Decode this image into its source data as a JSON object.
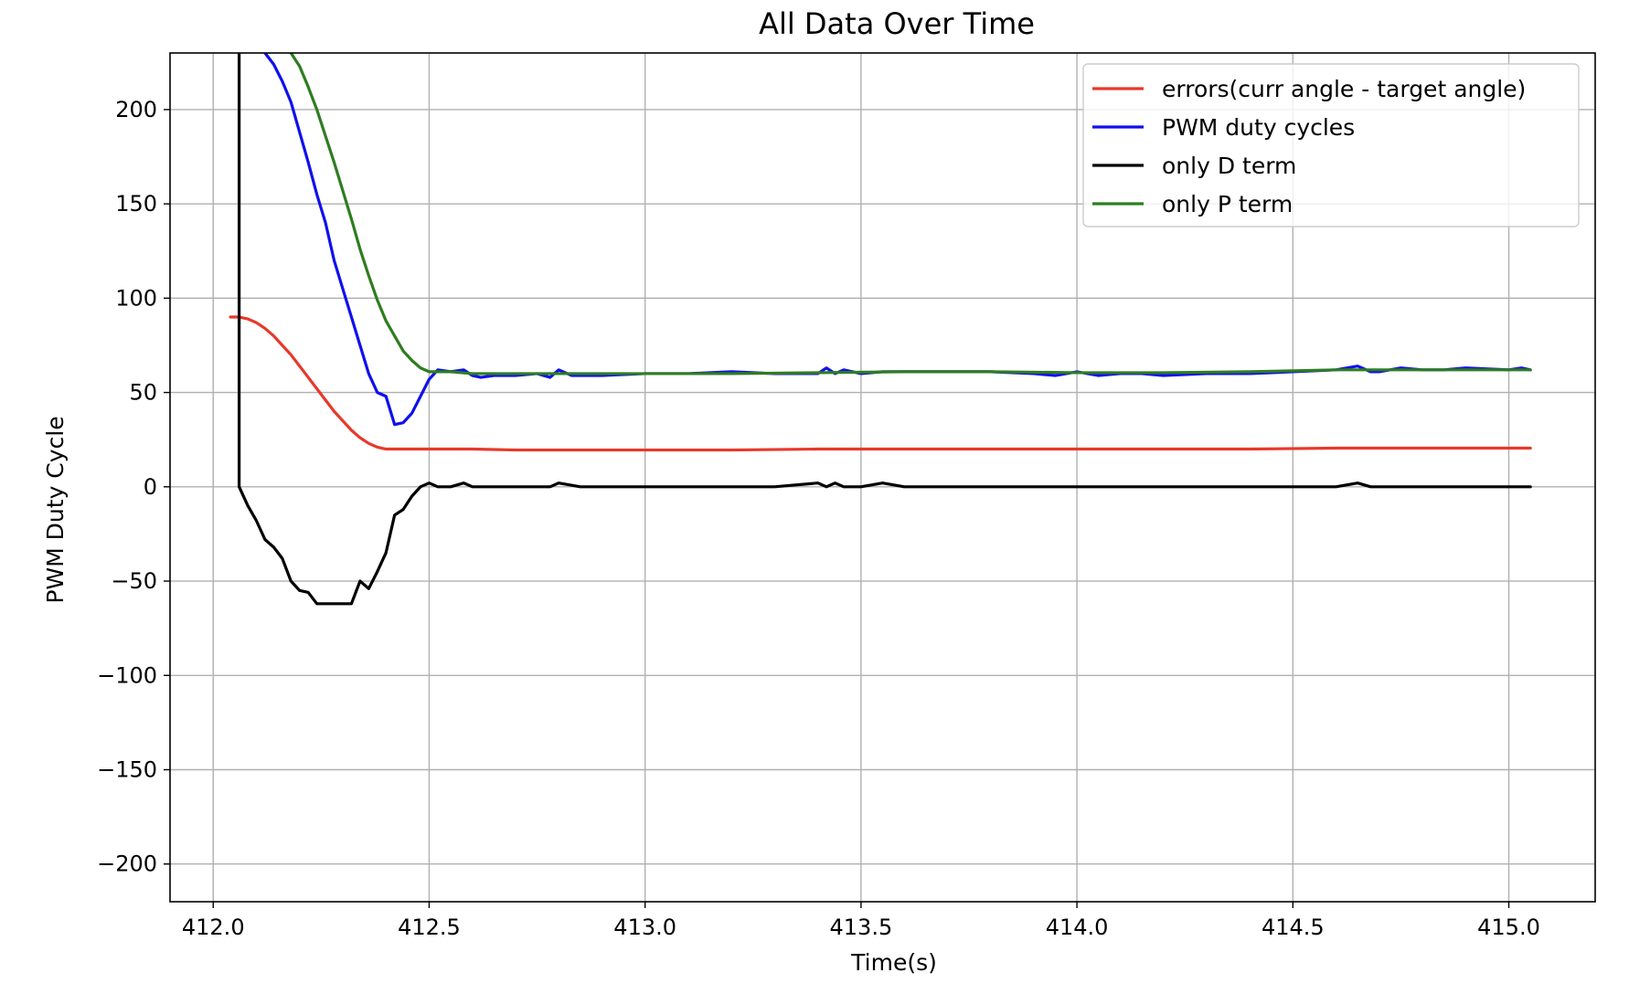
{
  "chart_data": {
    "type": "line",
    "title": "All Data Over Time",
    "xlabel": "Time(s)",
    "ylabel": "PWM Duty Cycle",
    "xlim": [
      411.9,
      415.2
    ],
    "ylim": [
      -220,
      230
    ],
    "x_ticks": [
      412.0,
      412.5,
      413.0,
      413.5,
      414.0,
      414.5,
      415.0
    ],
    "x_tick_labels": [
      "412.0",
      "412.5",
      "413.0",
      "413.5",
      "414.0",
      "414.5",
      "415.0"
    ],
    "y_ticks": [
      -200,
      -150,
      -100,
      -50,
      0,
      50,
      100,
      150,
      200
    ],
    "y_tick_labels": [
      "−200",
      "−150",
      "−100",
      "−50",
      "0",
      "50",
      "100",
      "150",
      "200"
    ],
    "grid": true,
    "legend_position": "top-right",
    "series": [
      {
        "name": "errors(curr angle - target angle)",
        "color": "#e8382a",
        "x": [
          412.04,
          412.06,
          412.08,
          412.1,
          412.12,
          412.14,
          412.16,
          412.18,
          412.2,
          412.22,
          412.24,
          412.26,
          412.28,
          412.3,
          412.32,
          412.34,
          412.36,
          412.38,
          412.4,
          412.42,
          412.44,
          412.46,
          412.48,
          412.5,
          412.6,
          412.7,
          412.8,
          412.9,
          413.0,
          413.2,
          413.4,
          413.6,
          413.8,
          414.0,
          414.2,
          414.4,
          414.6,
          414.8,
          415.0,
          415.05
        ],
        "y": [
          90,
          90,
          89,
          87,
          84,
          80,
          75,
          70,
          64,
          58,
          52,
          46,
          40,
          35,
          30,
          26,
          23,
          21,
          20,
          20,
          20,
          20,
          20,
          20,
          20,
          19.5,
          19.5,
          19.5,
          19.5,
          19.5,
          20,
          20,
          20,
          20,
          20,
          20,
          20.5,
          20.5,
          20.5,
          20.5
        ]
      },
      {
        "name": "PWM duty cycles",
        "color": "#1010ee",
        "x": [
          412.12,
          412.14,
          412.16,
          412.18,
          412.2,
          412.22,
          412.24,
          412.26,
          412.28,
          412.3,
          412.32,
          412.34,
          412.36,
          412.38,
          412.4,
          412.42,
          412.44,
          412.46,
          412.48,
          412.5,
          412.52,
          412.55,
          412.58,
          412.6,
          412.62,
          412.65,
          412.7,
          412.75,
          412.78,
          412.8,
          412.83,
          412.86,
          412.9,
          413.0,
          413.1,
          413.2,
          413.3,
          413.4,
          413.42,
          413.44,
          413.46,
          413.5,
          413.55,
          413.6,
          413.7,
          413.8,
          413.9,
          413.95,
          414.0,
          414.05,
          414.1,
          414.15,
          414.2,
          414.3,
          414.4,
          414.5,
          414.6,
          414.65,
          414.68,
          414.7,
          414.75,
          414.8,
          414.85,
          414.9,
          415.0,
          415.03,
          415.05
        ],
        "y": [
          230,
          224,
          215,
          204,
          188,
          172,
          155,
          140,
          120,
          105,
          90,
          75,
          60,
          50,
          48,
          33,
          34,
          39,
          48,
          57,
          62,
          61,
          62,
          59,
          58,
          59,
          59,
          60,
          58,
          62,
          59,
          59,
          59,
          60,
          60,
          61,
          60,
          60,
          63,
          60,
          62,
          60,
          61,
          61,
          61,
          61,
          60,
          59,
          61,
          59,
          60,
          60,
          59,
          60,
          60,
          61,
          62,
          64,
          61,
          61,
          63,
          62,
          62,
          63,
          62,
          63,
          62
        ]
      },
      {
        "name": "only D term",
        "color": "#000000",
        "x": [
          412.06,
          412.06,
          412.08,
          412.1,
          412.12,
          412.14,
          412.16,
          412.18,
          412.2,
          412.22,
          412.24,
          412.26,
          412.28,
          412.3,
          412.32,
          412.34,
          412.36,
          412.38,
          412.4,
          412.42,
          412.44,
          412.46,
          412.48,
          412.5,
          412.52,
          412.55,
          412.58,
          412.6,
          412.65,
          412.7,
          412.75,
          412.78,
          412.8,
          412.85,
          412.9,
          413.0,
          413.1,
          413.2,
          413.3,
          413.4,
          413.42,
          413.44,
          413.46,
          413.5,
          413.55,
          413.6,
          413.7,
          413.8,
          413.9,
          413.95,
          414.0,
          414.05,
          414.1,
          414.2,
          414.3,
          414.4,
          414.5,
          414.6,
          414.65,
          414.68,
          414.7,
          414.75,
          414.8,
          414.9,
          415.0,
          415.03,
          415.05
        ],
        "y": [
          230,
          0,
          -10,
          -18,
          -28,
          -32,
          -38,
          -50,
          -55,
          -56,
          -62,
          -62,
          -62,
          -62,
          -62,
          -50,
          -54,
          -45,
          -35,
          -15,
          -12,
          -5,
          0,
          2,
          0,
          0,
          2,
          0,
          0,
          0,
          0,
          0,
          2,
          0,
          0,
          0,
          0,
          0,
          0,
          2,
          0,
          2,
          0,
          0,
          2,
          0,
          0,
          0,
          0,
          0,
          0,
          0,
          0,
          0,
          0,
          0,
          0,
          0,
          2,
          0,
          0,
          0,
          0,
          0,
          0,
          0,
          0
        ]
      },
      {
        "name": "only P term",
        "color": "#2e7d20",
        "x": [
          412.18,
          412.2,
          412.22,
          412.24,
          412.26,
          412.28,
          412.3,
          412.32,
          412.34,
          412.36,
          412.38,
          412.4,
          412.42,
          412.44,
          412.46,
          412.48,
          412.5,
          412.55,
          412.6,
          412.7,
          412.8,
          412.9,
          413.0,
          413.2,
          413.4,
          413.6,
          413.8,
          414.0,
          414.2,
          414.4,
          414.6,
          414.8,
          415.0,
          415.05
        ],
        "y": [
          230,
          223,
          212,
          200,
          186,
          172,
          157,
          142,
          126,
          112,
          99,
          88,
          80,
          72,
          67,
          63,
          61,
          61,
          60,
          60,
          60,
          60,
          60,
          60,
          60.5,
          61,
          61,
          60.5,
          60.5,
          61,
          62,
          62,
          62,
          62
        ]
      }
    ]
  }
}
